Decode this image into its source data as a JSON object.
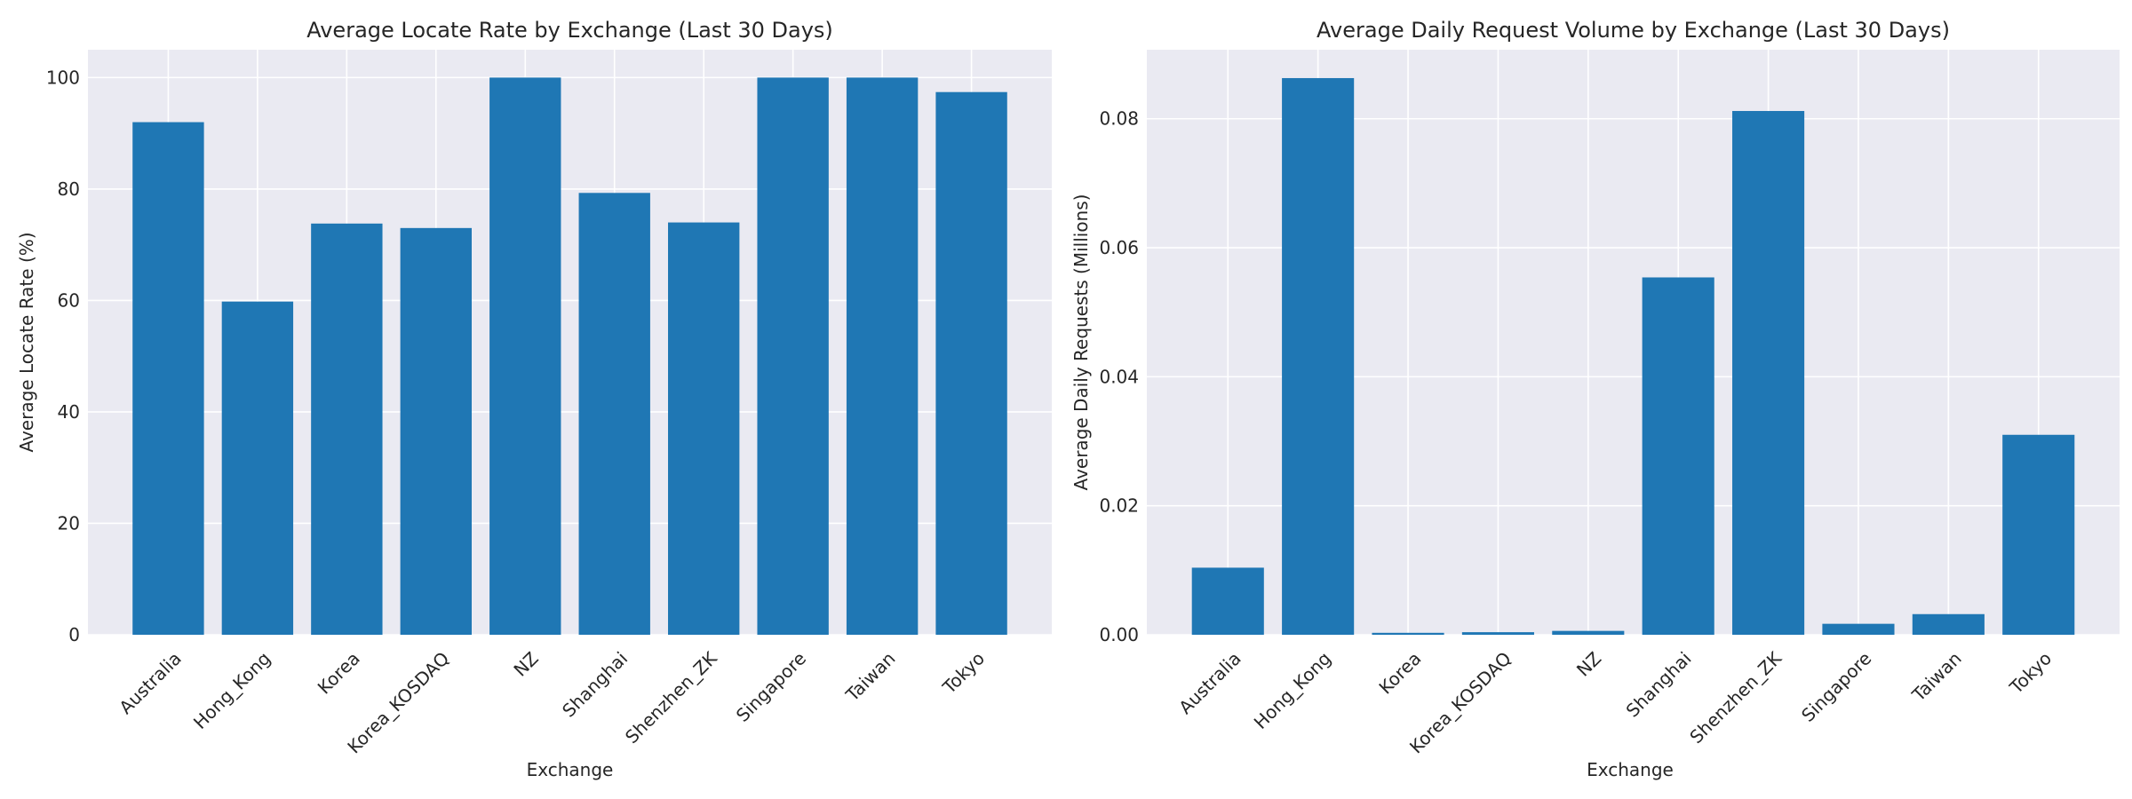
{
  "chart_data": [
    {
      "type": "bar",
      "title": "Average Locate Rate by Exchange (Last 30 Days)",
      "xlabel": "Exchange",
      "ylabel": "Average Locate Rate (%)",
      "categories": [
        "Australia",
        "Hong_Kong",
        "Korea",
        "Korea_KOSDAQ",
        "NZ",
        "Shanghai",
        "Shenzhen_ZK",
        "Singapore",
        "Taiwan",
        "Tokyo"
      ],
      "values": [
        92.0,
        59.8,
        73.8,
        73.0,
        100.0,
        79.3,
        74.0,
        100.0,
        100.0,
        97.4
      ],
      "ylim": [
        0,
        105
      ],
      "yticks": [
        0,
        20,
        40,
        60,
        80,
        100
      ],
      "ytick_labels": [
        "0",
        "20",
        "40",
        "60",
        "80",
        "100"
      ],
      "bar_color": "#1f77b4",
      "grid": true
    },
    {
      "type": "bar",
      "title": "Average Daily Request Volume by Exchange (Last 30 Days)",
      "xlabel": "Exchange",
      "ylabel": "Average Daily Requests (Millions)",
      "categories": [
        "Australia",
        "Hong_Kong",
        "Korea",
        "Korea_KOSDAQ",
        "NZ",
        "Shanghai",
        "Shenzhen_ZK",
        "Singapore",
        "Taiwan",
        "Tokyo"
      ],
      "values": [
        0.0104,
        0.0863,
        0.0003,
        0.0004,
        0.0006,
        0.0554,
        0.0812,
        0.0017,
        0.0032,
        0.031
      ],
      "ylim": [
        0,
        0.0907
      ],
      "yticks": [
        0,
        0.02,
        0.04,
        0.06,
        0.08
      ],
      "ytick_labels": [
        "0.00",
        "0.02",
        "0.04",
        "0.06",
        "0.08"
      ],
      "bar_color": "#1f77b4",
      "grid": true
    }
  ]
}
